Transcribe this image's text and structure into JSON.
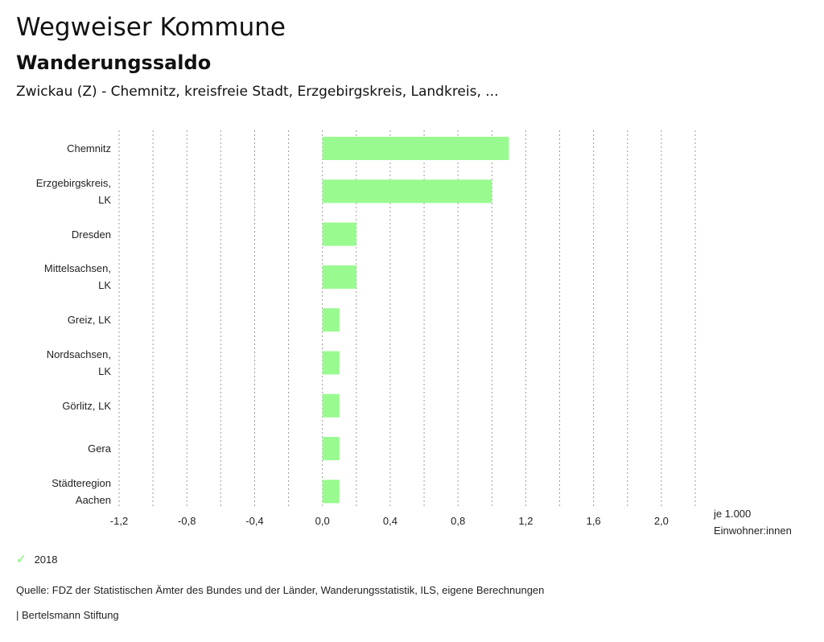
{
  "header": {
    "title": "Wegweiser Kommune",
    "subtitle": "Wanderungssaldo",
    "region": "Zwickau (Z) - Chemnitz, kreisfreie Stadt, Erzgebirgskreis, Landkreis, ..."
  },
  "chart_data": {
    "type": "bar",
    "orientation": "horizontal",
    "categories": [
      "Chemnitz",
      "Erzgebirgskreis, LK",
      "Dresden",
      "Mittelsachsen, LK",
      "Greiz, LK",
      "Nordsachsen, LK",
      "Görlitz, LK",
      "Gera",
      "Städteregion Aachen"
    ],
    "category_lines": [
      [
        "Chemnitz"
      ],
      [
        "Erzgebirgskreis,",
        "LK"
      ],
      [
        "Dresden"
      ],
      [
        "Mittelsachsen,",
        "LK"
      ],
      [
        "Greiz, LK"
      ],
      [
        "Nordsachsen,",
        "LK"
      ],
      [
        "Görlitz, LK"
      ],
      [
        "Gera"
      ],
      [
        "Städteregion",
        "Aachen"
      ]
    ],
    "series": [
      {
        "name": "2018",
        "color": "#98fa8f",
        "values": [
          1.1,
          1.0,
          0.2,
          0.2,
          0.1,
          0.1,
          0.1,
          0.1,
          0.1
        ]
      }
    ],
    "xlim": [
      -1.2,
      2.2
    ],
    "ticks": [
      -1.2,
      -0.8,
      -0.4,
      0.0,
      0.4,
      0.8,
      1.2,
      1.6,
      2.0
    ],
    "tick_labels": [
      "-1,2",
      "-0,8",
      "-0,4",
      "0,0",
      "0,4",
      "0,8",
      "1,2",
      "1,6",
      "2,0"
    ],
    "xlabel": [
      "je 1.000",
      "Einwohner:innen"
    ],
    "grid": true
  },
  "legend": {
    "label": "2018",
    "icon": "check-icon"
  },
  "footer": {
    "source": "Quelle: FDZ der Statistischen Ämter des Bundes und der Länder, Wanderungsstatistik, ILS, eigene Berechnungen",
    "credit": "| Bertelsmann Stiftung"
  }
}
